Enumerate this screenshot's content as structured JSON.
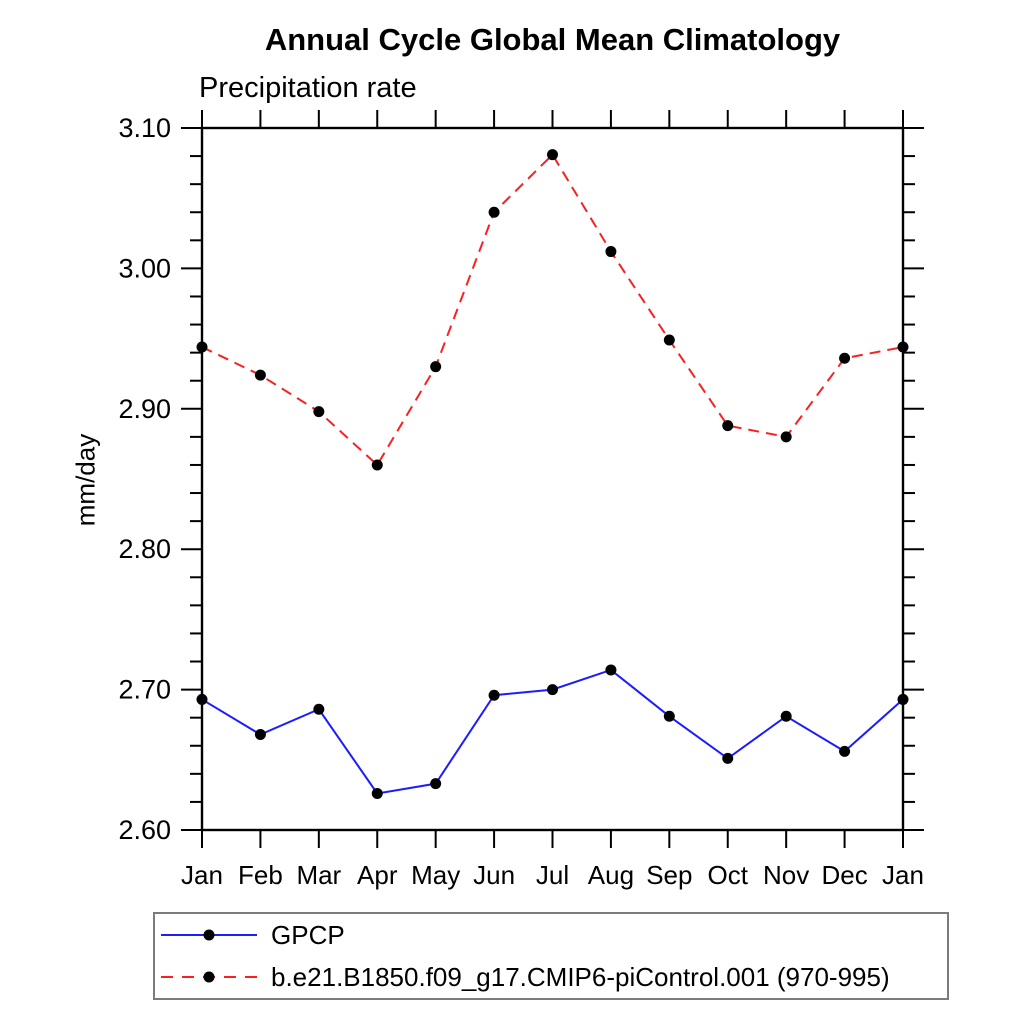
{
  "header": {
    "title": "Annual Cycle Global Mean Climatology",
    "subtitle": "Precipitation rate"
  },
  "chart_data": {
    "type": "line",
    "x": [
      "Jan",
      "Feb",
      "Mar",
      "Apr",
      "May",
      "Jun",
      "Jul",
      "Aug",
      "Sep",
      "Oct",
      "Nov",
      "Dec",
      "Jan"
    ],
    "ylabel": "mm/day",
    "ylim": [
      2.6,
      3.1
    ],
    "ytick_values": [
      2.6,
      2.7,
      2.8,
      2.9,
      3.0,
      3.1
    ],
    "ytick_labels": [
      "2.60",
      "2.70",
      "2.80",
      "2.90",
      "3.00",
      "3.10"
    ],
    "minor_tick_step": 0.02,
    "grid": false,
    "legend_position": "bottom",
    "axis_color": "#000000",
    "marker_color": "#000000",
    "series": [
      {
        "name": "GPCP",
        "color": "#1c1cff",
        "style": "solid",
        "marker": "circle",
        "values": [
          2.693,
          2.668,
          2.686,
          2.626,
          2.633,
          2.696,
          2.7,
          2.714,
          2.681,
          2.651,
          2.681,
          2.656,
          2.693
        ]
      },
      {
        "name": "b.e21.B1850.f09_g17.CMIP6-piControl.001 (970-995)",
        "color": "#fb2020",
        "style": "dashed",
        "marker": "circle",
        "values": [
          2.944,
          2.924,
          2.898,
          2.86,
          2.93,
          3.04,
          3.081,
          3.012,
          2.949,
          2.888,
          2.88,
          2.936,
          2.944
        ]
      }
    ]
  }
}
